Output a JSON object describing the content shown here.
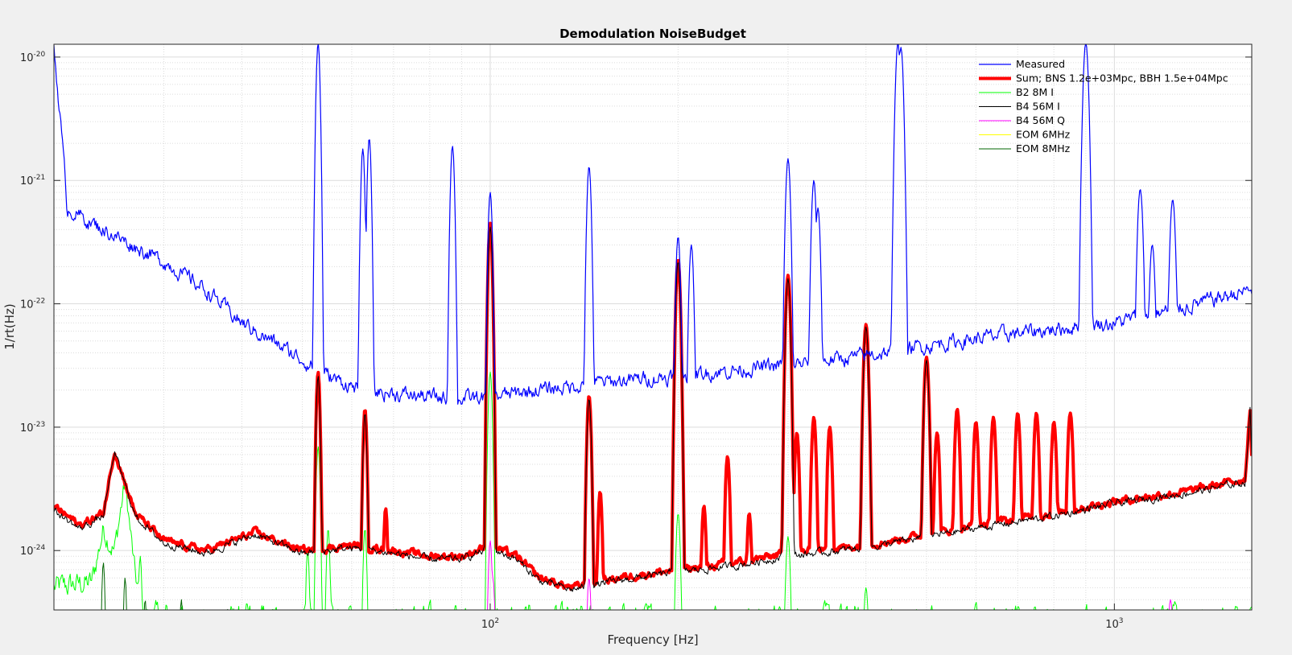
{
  "chart_data": {
    "type": "line",
    "title": "Demodulation NoiseBudget",
    "xlabel": "Frequency [Hz]",
    "ylabel": "1/rt(Hz)",
    "xscale": "log",
    "yscale": "log",
    "xlim": [
      20,
      1660
    ],
    "ylim": [
      3.3e-25,
      1.27e-20
    ],
    "grid": true,
    "legend_position": "top-right",
    "x_ticks": [
      {
        "value": 100,
        "base": "10",
        "exp": "2"
      },
      {
        "value": 1000,
        "base": "10",
        "exp": "3"
      }
    ],
    "y_ticks": [
      {
        "value": 1e-24,
        "base": "10",
        "exp": "-24"
      },
      {
        "value": 1e-23,
        "base": "10",
        "exp": "-23"
      },
      {
        "value": 1e-22,
        "base": "10",
        "exp": "-22"
      },
      {
        "value": 1e-21,
        "base": "10",
        "exp": "-21"
      },
      {
        "value": 1e-20,
        "base": "10",
        "exp": "-20"
      }
    ],
    "series": [
      {
        "name": "Measured",
        "color": "#0000ff",
        "width": 1.2,
        "baseline": [
          [
            20,
            1.2e-20
          ],
          [
            20.5,
            3e-21
          ],
          [
            21,
            6e-22
          ],
          [
            23,
            4.5e-22
          ],
          [
            26,
            3.2e-22
          ],
          [
            30,
            2.2e-22
          ],
          [
            35,
            1.3e-22
          ],
          [
            40,
            7e-23
          ],
          [
            48,
            4e-23
          ],
          [
            55,
            2.6e-23
          ],
          [
            62,
            2e-23
          ],
          [
            75,
            1.8e-23
          ],
          [
            90,
            1.7e-23
          ],
          [
            100,
            1.75e-23
          ],
          [
            120,
            2e-23
          ],
          [
            150,
            2.3e-23
          ],
          [
            200,
            2.6e-23
          ],
          [
            300,
            3.2e-23
          ],
          [
            400,
            3.8e-23
          ],
          [
            500,
            4.6e-23
          ],
          [
            700,
            5.8e-23
          ],
          [
            1000,
            7e-23
          ],
          [
            1300,
            9.5e-23
          ],
          [
            1660,
            1.3e-22
          ]
        ],
        "peaks": [
          [
            53,
            1.3e-20
          ],
          [
            62.5,
            1.8e-21
          ],
          [
            64,
            2.2e-21
          ],
          [
            87,
            1.9e-21
          ],
          [
            100,
            8e-22
          ],
          [
            144,
            1.3e-21
          ],
          [
            200,
            3.5e-22
          ],
          [
            210,
            3e-22
          ],
          [
            300,
            1.5e-21
          ],
          [
            330,
            1e-21
          ],
          [
            335,
            6e-22
          ],
          [
            450,
            1.3e-20
          ],
          [
            455,
            1.2e-20
          ],
          [
            900,
            1.3e-20
          ],
          [
            1100,
            8.5e-22
          ],
          [
            1240,
            7e-22
          ],
          [
            1150,
            3e-22
          ]
        ],
        "noise": 0.12
      },
      {
        "name": "Sum; BNS 1.2e+03Mpc, BBH 1.5e+04Mpc",
        "color": "#ff0000",
        "width": 4,
        "baseline": [
          [
            20,
            2.3e-24
          ],
          [
            22,
            1.6e-24
          ],
          [
            24,
            2e-24
          ],
          [
            25,
            6.5e-24
          ],
          [
            27,
            2e-24
          ],
          [
            30,
            1.2e-24
          ],
          [
            35,
            1e-24
          ],
          [
            42,
            1.4e-24
          ],
          [
            50,
            1e-24
          ],
          [
            60,
            1.1e-24
          ],
          [
            70,
            1e-24
          ],
          [
            80,
            9e-25
          ],
          [
            90,
            9e-25
          ],
          [
            100,
            1.1e-24
          ],
          [
            110,
            9e-25
          ],
          [
            120,
            6e-25
          ],
          [
            135,
            5e-25
          ],
          [
            160,
            6e-25
          ],
          [
            200,
            7e-25
          ],
          [
            250,
            8e-25
          ],
          [
            300,
            9.5e-25
          ],
          [
            400,
            1.1e-24
          ],
          [
            600,
            1.6e-24
          ],
          [
            800,
            2e-24
          ],
          [
            1000,
            2.5e-24
          ],
          [
            1300,
            3e-24
          ],
          [
            1620,
            3.8e-24
          ],
          [
            1650,
            1.5e-23
          ],
          [
            1660,
            6e-24
          ]
        ],
        "peaks": [
          [
            53,
            2.8e-23
          ],
          [
            63,
            1.4e-23
          ],
          [
            68,
            2.2e-24
          ],
          [
            100,
            4.5e-22
          ],
          [
            144,
            1.8e-23
          ],
          [
            150,
            3e-24
          ],
          [
            200,
            2.3e-22
          ],
          [
            220,
            2.3e-24
          ],
          [
            240,
            5.8e-24
          ],
          [
            260,
            2e-24
          ],
          [
            300,
            1.7e-22
          ],
          [
            310,
            9e-24
          ],
          [
            330,
            1.2e-23
          ],
          [
            350,
            1e-23
          ],
          [
            400,
            6.8e-23
          ],
          [
            500,
            3.7e-23
          ],
          [
            520,
            9e-24
          ],
          [
            560,
            1.4e-23
          ],
          [
            600,
            1.1e-23
          ],
          [
            640,
            1.2e-23
          ],
          [
            700,
            1.3e-23
          ],
          [
            750,
            1.3e-23
          ],
          [
            800,
            1.1e-23
          ],
          [
            850,
            1.3e-23
          ]
        ],
        "noise": 0.06
      },
      {
        "name": "B2 8M I",
        "color": "#00ff00",
        "width": 1,
        "baseline": [
          [
            20,
            5e-25
          ],
          [
            23,
            5.5e-25
          ],
          [
            24,
            1.5e-24
          ],
          [
            25,
            1e-24
          ],
          [
            26,
            3.6e-24
          ],
          [
            27,
            6e-25
          ],
          [
            28,
            3e-25
          ],
          [
            35,
            2.8e-25
          ],
          [
            50,
            2.8e-25
          ],
          [
            60,
            2.8e-25
          ],
          [
            1660,
            2.8e-25
          ]
        ],
        "peaks": [
          [
            53,
            7e-24
          ],
          [
            55,
            1.5e-24
          ],
          [
            63,
            1.5e-24
          ],
          [
            100,
            2.8e-23
          ],
          [
            200,
            2e-24
          ],
          [
            300,
            1.3e-24
          ],
          [
            400,
            5e-25
          ],
          [
            51,
            1e-24
          ],
          [
            27.5,
            9e-25
          ]
        ],
        "noise": 0.2
      },
      {
        "name": "B4 56M I",
        "color": "#000000",
        "width": 1,
        "baseline": [
          [
            20,
            2.1e-24
          ],
          [
            22,
            1.5e-24
          ],
          [
            24,
            1.9e-24
          ],
          [
            25,
            6.3e-24
          ],
          [
            27,
            1.9e-24
          ],
          [
            30,
            1.15e-24
          ],
          [
            35,
            9.5e-25
          ],
          [
            42,
            1.35e-24
          ],
          [
            50,
            9.5e-25
          ],
          [
            60,
            1.05e-24
          ],
          [
            70,
            9.5e-25
          ],
          [
            80,
            8.5e-25
          ],
          [
            90,
            8.5e-25
          ],
          [
            100,
            1.05e-24
          ],
          [
            110,
            8.5e-25
          ],
          [
            120,
            5.7e-25
          ],
          [
            135,
            4.8e-25
          ],
          [
            160,
            5.7e-25
          ],
          [
            200,
            6.7e-25
          ],
          [
            250,
            7.6e-25
          ],
          [
            300,
            9e-25
          ],
          [
            400,
            1.05e-24
          ],
          [
            600,
            1.52e-24
          ],
          [
            800,
            1.9e-24
          ],
          [
            1000,
            2.4e-24
          ],
          [
            1300,
            2.9e-24
          ],
          [
            1620,
            3.6e-24
          ],
          [
            1650,
            1.4e-23
          ],
          [
            1660,
            5.7e-24
          ]
        ],
        "peaks": [
          [
            53,
            2.6e-23
          ],
          [
            63,
            1.3e-23
          ],
          [
            100,
            4.2e-22
          ],
          [
            144,
            1.7e-23
          ],
          [
            200,
            2.2e-22
          ],
          [
            300,
            1.6e-22
          ],
          [
            400,
            6.5e-23
          ],
          [
            500,
            3.5e-23
          ]
        ],
        "noise": 0.06
      },
      {
        "name": "B4 56M Q",
        "color": "#ff00ff",
        "width": 1,
        "baseline": [
          [
            20,
            2e-25
          ],
          [
            1660,
            2e-25
          ]
        ],
        "peaks": [
          [
            100,
            1.2e-24
          ],
          [
            101,
            6e-25
          ],
          [
            144,
            6e-25
          ],
          [
            1230,
            4e-25
          ]
        ],
        "noise": 0.1
      },
      {
        "name": "EOM 6MHz",
        "color": "#ffff00",
        "width": 1,
        "baseline": [
          [
            20,
            2e-25
          ],
          [
            1660,
            2e-25
          ]
        ],
        "peaks": [],
        "noise": 0.05
      },
      {
        "name": "EOM 8MHz",
        "color": "#006400",
        "width": 1,
        "baseline": [
          [
            20,
            2e-25
          ],
          [
            1660,
            2e-25
          ]
        ],
        "peaks": [
          [
            24,
            8e-25
          ],
          [
            26,
            6e-25
          ],
          [
            28,
            4e-25
          ],
          [
            32,
            4e-25
          ],
          [
            38,
            3.4e-25
          ]
        ],
        "noise": 0.1
      }
    ]
  }
}
